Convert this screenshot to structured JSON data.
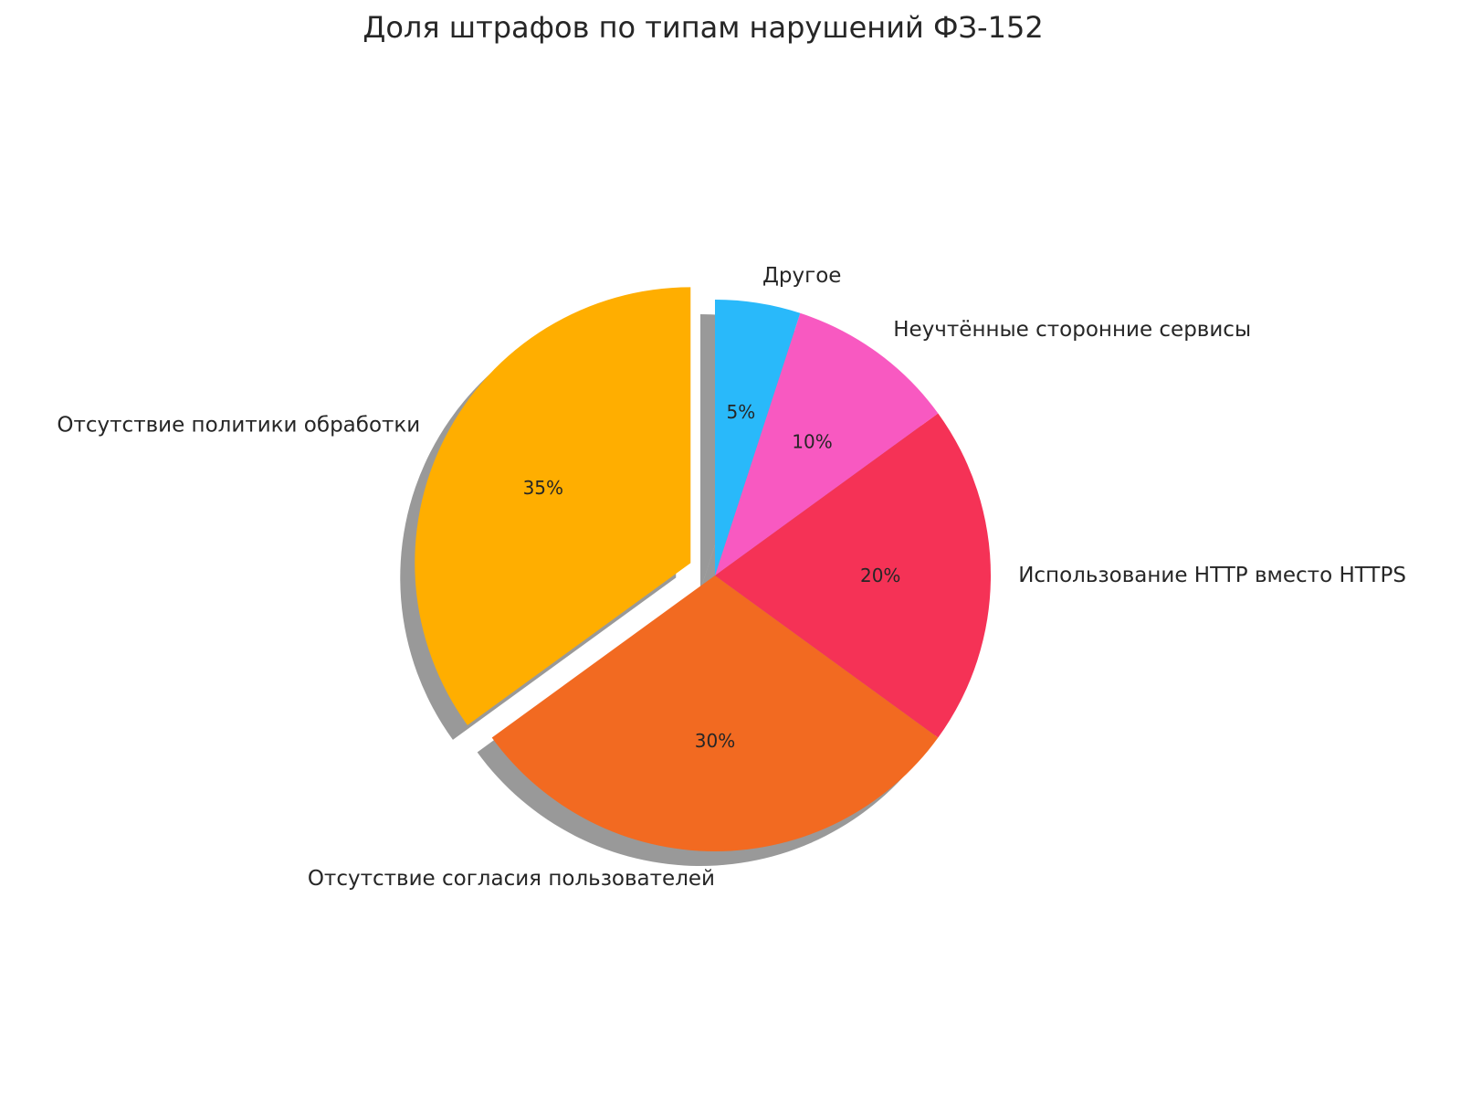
{
  "chart_data": {
    "type": "pie",
    "title": "Доля штрафов по типам нарушений ФЗ-152",
    "slices": [
      {
        "label": "Отсутствие политики обработки",
        "value": 35,
        "pct_label": "35%",
        "color": "#FFAE00",
        "exploded": true
      },
      {
        "label": "Отсутствие согласия пользователей",
        "value": 30,
        "pct_label": "30%",
        "color": "#F26A21"
      },
      {
        "label": "Использование HTTP вместо HTTPS",
        "value": 20,
        "pct_label": "20%",
        "color": "#F53256"
      },
      {
        "label": "Неучтённые сторонние сервисы",
        "value": 10,
        "pct_label": "10%",
        "color": "#F859C1"
      },
      {
        "label": "Другое",
        "value": 5,
        "pct_label": "5%",
        "color": "#29B9FA"
      }
    ],
    "start_angle_deg": 90,
    "direction": "counterclockwise",
    "shadow": true,
    "legend": "none"
  }
}
